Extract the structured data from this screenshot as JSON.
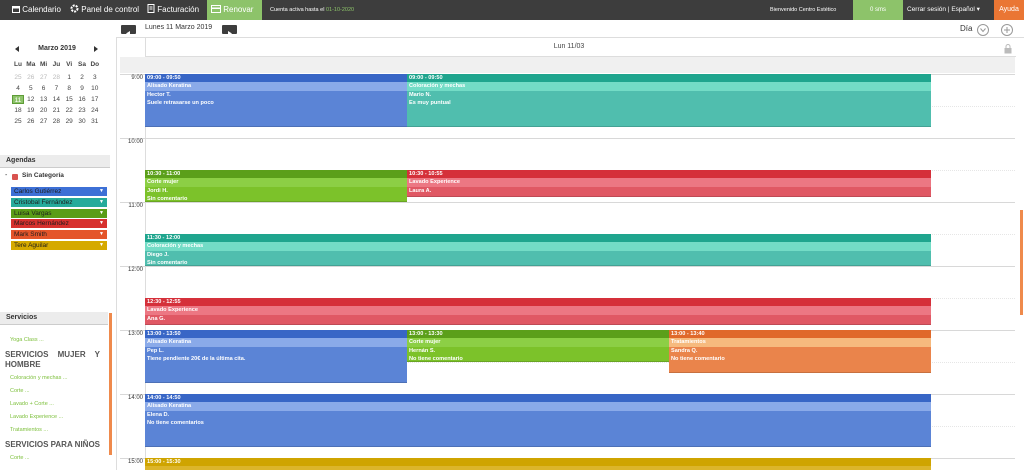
{
  "nav": {
    "calendar": "Calendario",
    "panel": "Panel de control",
    "billing": "Facturación",
    "renew": "Renovar",
    "account_prefix": "Cuenta activa hasta el",
    "account_date": "01-10-2020",
    "welcome": "Bienvenido Centro Estético",
    "sms": "0 sms",
    "logout": "Cerrar sesión | Español",
    "help": "Ayuda"
  },
  "toolbar": {
    "date": "Lunes 11 Marzo 2019",
    "view": "Día"
  },
  "mini_calendar": {
    "month": "Marzo 2019",
    "weekdays": [
      "Lu",
      "Ma",
      "Mi",
      "Ju",
      "Vi",
      "Sa",
      "Do"
    ],
    "weeks": [
      [
        25,
        26,
        27,
        28,
        1,
        2,
        3
      ],
      [
        4,
        5,
        6,
        7,
        8,
        9,
        10
      ],
      [
        11,
        12,
        13,
        14,
        15,
        16,
        17
      ],
      [
        18,
        19,
        20,
        21,
        22,
        23,
        24
      ],
      [
        25,
        26,
        27,
        28,
        29,
        30,
        31
      ]
    ]
  },
  "agendas": {
    "title": "Agendas",
    "category": "Sin Categoría",
    "items": [
      "Carlos Gutiérrez",
      "Cristobal Fernández",
      "Luisa Vargas",
      "Marcos Hernández",
      "Mark Smith",
      "Tere Aguilar"
    ]
  },
  "services": {
    "title": "Servicios",
    "items": [
      "Yoga Class ..."
    ],
    "groups": [
      {
        "title": "SERVICIOS MUJER Y HOMBRE",
        "items": [
          "Coloración y mechas ...",
          "Corte ...",
          "Lavado + Corte ...",
          "Lavado Experience ...",
          "Tratamientos ..."
        ]
      },
      {
        "title": "SERVICIOS PARA NIÑOS",
        "items": [
          "Corte ..."
        ]
      }
    ]
  },
  "calendar": {
    "day_header": "Lun 11/03",
    "hours": [
      "9:00",
      "10:00",
      "11:00",
      "12:00",
      "13:00",
      "14:00",
      "15:00"
    ],
    "events": [
      {
        "time": "09:00 - 09:50",
        "service": "Alisado Keratina",
        "client": "Hector T.",
        "comment": "Suele retrasarse un poco"
      },
      {
        "time": "09:00 - 09:50",
        "service": "Coloración y mechas",
        "client": "Mario N.",
        "comment": "Es muy puntual"
      },
      {
        "time": "10:30 - 11:00",
        "service": "Corte mujer",
        "client": "Jordi H.",
        "comment": "Sin comentario"
      },
      {
        "time": "10:30 - 10:55",
        "service": "Lavado Experience",
        "client": "Laura A."
      },
      {
        "time": "11:30 - 12:00",
        "service": "Coloración y mechas",
        "client": "Diego J.",
        "comment": "Sin comentario"
      },
      {
        "time": "12:30 - 12:55",
        "service": "Lavado Experience",
        "client": "Ana G."
      },
      {
        "time": "13:00 - 13:50",
        "service": "Alisado Keratina",
        "client": "Pep L.",
        "comment": "Tiene pendiente 20€ de la última cita."
      },
      {
        "time": "13:00 - 13:30",
        "service": "Corte mujer",
        "client": "Hernán S.",
        "comment": "No tiene comentario"
      },
      {
        "time": "13:00 - 13:40",
        "service": "Tratamientos",
        "client": "Sandra Q.",
        "comment": "No tiene comentario"
      },
      {
        "time": "14:00 - 14:50",
        "service": "Alisado Keratina",
        "client": "Elena D.",
        "comment": "No tiene comentarios"
      },
      {
        "time": "15:00 - 15:30"
      }
    ]
  }
}
